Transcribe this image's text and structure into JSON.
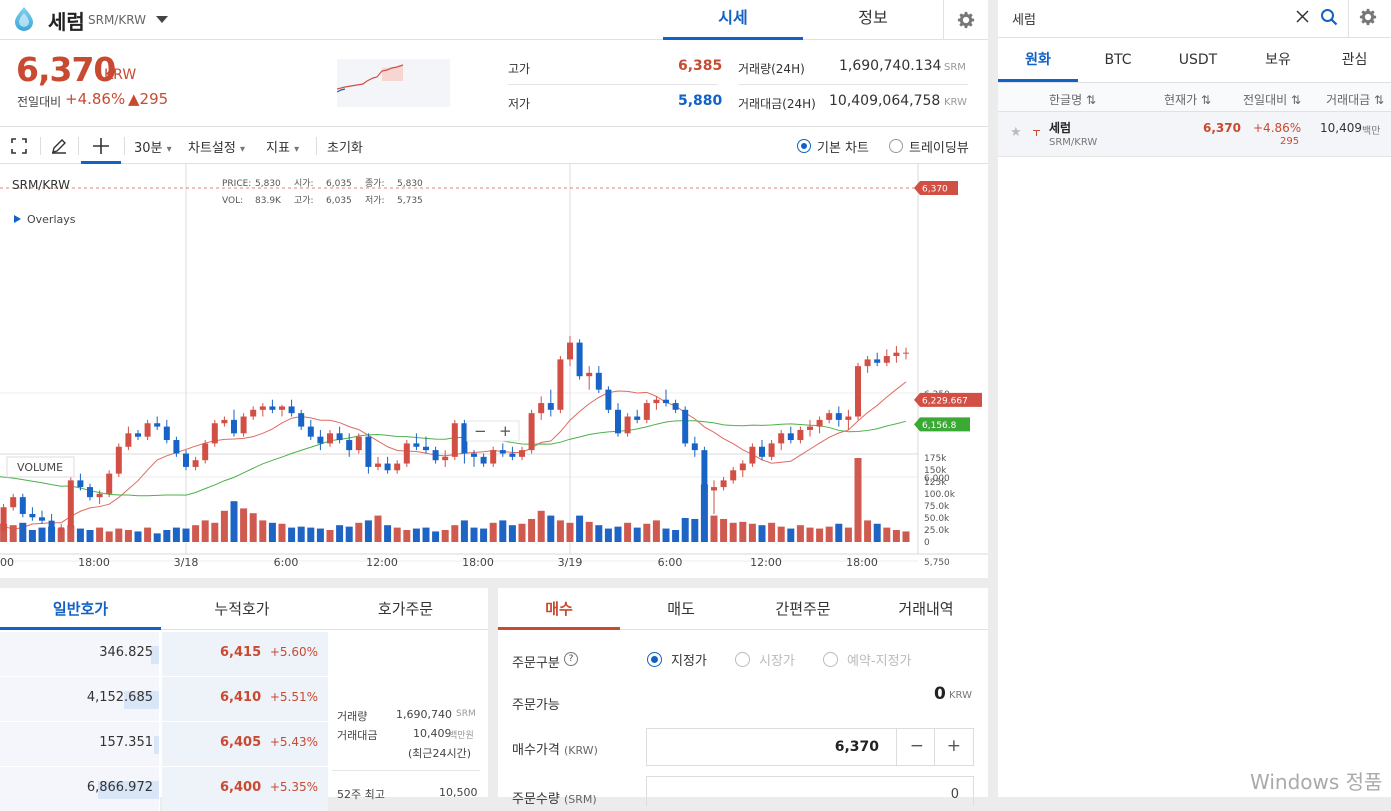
{
  "header": {
    "coin_name": "세럼",
    "coin_pair": "SRM/KRW",
    "tabs": [
      "시세",
      "정보"
    ]
  },
  "summary": {
    "price": "6,370",
    "unit": "KRW",
    "prev_label": "전일대비",
    "change_pct": "+4.86%",
    "change_abs": "▲295",
    "high_label": "고가",
    "high": "6,385",
    "low_label": "저가",
    "low": "5,880",
    "volume_label": "거래량(24H)",
    "volume": "1,690,740.134",
    "volume_unit": "SRM",
    "amount_label": "거래대금(24H)",
    "amount": "10,409,064,758",
    "amount_unit": "KRW"
  },
  "chart_toolbar": {
    "interval": "30분",
    "settings": "차트설정",
    "indicators": "지표",
    "reset": "초기화",
    "basic_chart": "기본 차트",
    "tradingview": "트레이딩뷰"
  },
  "chart_legend": {
    "pair": "SRM/KRW",
    "overlays": "Overlays",
    "price_label": "PRICE:",
    "price": "5,830",
    "open_label": "시가:",
    "open": "6,035",
    "close_label": "종가:",
    "close": "5,830",
    "vol_label": "VOL:",
    "vol": "83.9K",
    "high_label": "고가:",
    "high": "6,035",
    "low_label": "저가:",
    "low": "5,735",
    "volume_pane": "VOLUME",
    "minus": "−",
    "plus": "+"
  },
  "chart_data": {
    "type": "candlestick",
    "y_ticks": [
      "6,250",
      "6,000",
      "5,750"
    ],
    "y_tick_values": [
      6250,
      6000,
      5750
    ],
    "volume_ticks": [
      "175k",
      "150k",
      "125k",
      "100.0k",
      "75.0k",
      "50.0k",
      "25.0k",
      "0"
    ],
    "volume_tick_values": [
      175000,
      150000,
      125000,
      100000,
      75000,
      50000,
      25000,
      0
    ],
    "x_labels": [
      "00",
      "18:00",
      "3/18",
      "6:00",
      "12:00",
      "18:00",
      "3/19",
      "6:00",
      "12:00",
      "18:00"
    ],
    "price_tags": [
      {
        "label": "6,370",
        "value": 6370,
        "color": "#d24f45"
      },
      {
        "label": "6,229.667",
        "value": 6229.667,
        "color": "#d24f45"
      },
      {
        "label": "6,156.8",
        "value": 6156.8,
        "color": "#3aaa35"
      }
    ],
    "candles": [
      [
        6150,
        6170,
        6130,
        6140,
        25000
      ],
      [
        6140,
        6160,
        6120,
        6150,
        18000
      ],
      [
        6150,
        6155,
        6100,
        6120,
        22000
      ],
      [
        6120,
        6170,
        6110,
        6160,
        30000
      ],
      [
        6160,
        6175,
        6140,
        6145,
        20000
      ],
      [
        6145,
        6160,
        6110,
        6130,
        28000
      ],
      [
        6130,
        6190,
        6120,
        6175,
        35000
      ],
      [
        6175,
        6180,
        6150,
        6160,
        22000
      ],
      [
        6160,
        6165,
        6110,
        6120,
        40000
      ],
      [
        6120,
        6130,
        6070,
        6080,
        45000
      ],
      [
        6080,
        6100,
        6050,
        6070,
        55000
      ],
      [
        6070,
        6090,
        6020,
        6040,
        45000
      ],
      [
        6040,
        6050,
        5800,
        5830,
        85000
      ],
      [
        5830,
        5870,
        5750,
        5780,
        85000
      ],
      [
        5780,
        5860,
        5770,
        5850,
        40000
      ],
      [
        5850,
        5870,
        5810,
        5820,
        30000
      ],
      [
        5820,
        5860,
        5810,
        5850,
        35000
      ],
      [
        5850,
        5860,
        5790,
        5800,
        50000
      ],
      [
        5800,
        5830,
        5780,
        5820,
        40000
      ],
      [
        5820,
        5850,
        5690,
        5840,
        45000
      ],
      [
        5840,
        5920,
        5830,
        5910,
        38000
      ],
      [
        5910,
        5950,
        5900,
        5940,
        35000
      ],
      [
        5940,
        5950,
        5880,
        5890,
        40000
      ],
      [
        5890,
        5910,
        5870,
        5880,
        25000
      ],
      [
        5880,
        5900,
        5860,
        5870,
        30000
      ],
      [
        5870,
        5890,
        5830,
        5840,
        32000
      ],
      [
        5840,
        5860,
        5820,
        5850,
        28000
      ],
      [
        5850,
        6000,
        5840,
        5990,
        35000
      ],
      [
        5990,
        6010,
        5960,
        5970,
        28000
      ],
      [
        5970,
        5980,
        5930,
        5940,
        25000
      ],
      [
        5940,
        5960,
        5920,
        5950,
        30000
      ],
      [
        5950,
        6020,
        5940,
        6010,
        22000
      ],
      [
        6010,
        6100,
        6000,
        6090,
        28000
      ],
      [
        6090,
        6150,
        6080,
        6130,
        25000
      ],
      [
        6130,
        6140,
        6110,
        6120,
        22000
      ],
      [
        6120,
        6170,
        6110,
        6160,
        30000
      ],
      [
        6160,
        6180,
        6140,
        6150,
        18000
      ],
      [
        6150,
        6170,
        6100,
        6110,
        25000
      ],
      [
        6110,
        6120,
        6060,
        6070,
        30000
      ],
      [
        6070,
        6080,
        6020,
        6030,
        28000
      ],
      [
        6030,
        6060,
        6020,
        6050,
        35000
      ],
      [
        6050,
        6110,
        6040,
        6100,
        45000
      ],
      [
        6100,
        6170,
        6090,
        6160,
        40000
      ],
      [
        6160,
        6180,
        6150,
        6170,
        65000
      ],
      [
        6170,
        6200,
        6120,
        6130,
        85000
      ],
      [
        6130,
        6190,
        6120,
        6180,
        70000
      ],
      [
        6180,
        6210,
        6170,
        6200,
        60000
      ],
      [
        6200,
        6220,
        6180,
        6210,
        45000
      ],
      [
        6210,
        6230,
        6190,
        6200,
        40000
      ],
      [
        6200,
        6215,
        6180,
        6210,
        38000
      ],
      [
        6210,
        6230,
        6180,
        6190,
        30000
      ],
      [
        6190,
        6200,
        6140,
        6150,
        32000
      ],
      [
        6150,
        6170,
        6110,
        6120,
        30000
      ],
      [
        6120,
        6140,
        6080,
        6100,
        28000
      ],
      [
        6100,
        6140,
        6090,
        6130,
        25000
      ],
      [
        6130,
        6150,
        6100,
        6110,
        35000
      ],
      [
        6110,
        6130,
        6060,
        6080,
        32000
      ],
      [
        6080,
        6130,
        6070,
        6120,
        40000
      ],
      [
        6120,
        6130,
        6010,
        6030,
        45000
      ],
      [
        6030,
        6060,
        6020,
        6040,
        55000
      ],
      [
        6040,
        6060,
        6010,
        6020,
        35000
      ],
      [
        6020,
        6050,
        6010,
        6040,
        30000
      ],
      [
        6040,
        6110,
        6030,
        6100,
        25000
      ],
      [
        6100,
        6130,
        6080,
        6090,
        28000
      ],
      [
        6090,
        6120,
        6070,
        6080,
        30000
      ],
      [
        6080,
        6090,
        6040,
        6050,
        22000
      ],
      [
        6050,
        6080,
        6030,
        6060,
        25000
      ],
      [
        6060,
        6170,
        6050,
        6160,
        35000
      ],
      [
        6160,
        6170,
        6040,
        6070,
        45000
      ],
      [
        6070,
        6080,
        6030,
        6060,
        30000
      ],
      [
        6060,
        6070,
        6030,
        6040,
        28000
      ],
      [
        6040,
        6090,
        6030,
        6080,
        40000
      ],
      [
        6080,
        6100,
        6060,
        6070,
        45000
      ],
      [
        6070,
        6090,
        6050,
        6060,
        35000
      ],
      [
        6060,
        6090,
        6050,
        6080,
        38000
      ],
      [
        6080,
        6200,
        6070,
        6190,
        48000
      ],
      [
        6190,
        6240,
        6170,
        6220,
        65000
      ],
      [
        6220,
        6260,
        6180,
        6200,
        55000
      ],
      [
        6200,
        6360,
        6190,
        6350,
        45000
      ],
      [
        6350,
        6420,
        6330,
        6400,
        40000
      ],
      [
        6400,
        6410,
        6290,
        6300,
        55000
      ],
      [
        6300,
        6330,
        6260,
        6310,
        42000
      ],
      [
        6310,
        6330,
        6250,
        6260,
        35000
      ],
      [
        6260,
        6270,
        6190,
        6200,
        28000
      ],
      [
        6200,
        6220,
        6120,
        6130,
        32000
      ],
      [
        6130,
        6190,
        6120,
        6180,
        40000
      ],
      [
        6180,
        6200,
        6160,
        6170,
        30000
      ],
      [
        6170,
        6230,
        6160,
        6220,
        38000
      ],
      [
        6220,
        6240,
        6200,
        6230,
        45000
      ],
      [
        6230,
        6260,
        6210,
        6220,
        28000
      ],
      [
        6220,
        6230,
        6190,
        6200,
        25000
      ],
      [
        6200,
        6210,
        6090,
        6100,
        50000
      ],
      [
        6100,
        6120,
        6060,
        6080,
        48000
      ],
      [
        6080,
        6090,
        5930,
        5960,
        120000
      ],
      [
        5960,
        5990,
        5890,
        5970,
        55000
      ],
      [
        5970,
        6000,
        5960,
        5990,
        48000
      ],
      [
        5990,
        6030,
        5980,
        6020,
        40000
      ],
      [
        6020,
        6050,
        6000,
        6040,
        42000
      ],
      [
        6040,
        6100,
        6030,
        6090,
        38000
      ],
      [
        6090,
        6110,
        6050,
        6060,
        35000
      ],
      [
        6060,
        6110,
        6050,
        6100,
        40000
      ],
      [
        6100,
        6140,
        6080,
        6130,
        32000
      ],
      [
        6130,
        6150,
        6100,
        6110,
        28000
      ],
      [
        6110,
        6150,
        6100,
        6140,
        35000
      ],
      [
        6140,
        6170,
        6120,
        6150,
        30000
      ],
      [
        6150,
        6180,
        6130,
        6170,
        28000
      ],
      [
        6170,
        6200,
        6160,
        6190,
        32000
      ],
      [
        6190,
        6210,
        6150,
        6170,
        38000
      ],
      [
        6170,
        6200,
        6140,
        6180,
        30000
      ],
      [
        6180,
        6340,
        6170,
        6330,
        175000
      ],
      [
        6330,
        6360,
        6310,
        6350,
        45000
      ],
      [
        6350,
        6370,
        6330,
        6340,
        38000
      ],
      [
        6340,
        6380,
        6330,
        6360,
        30000
      ],
      [
        6360,
        6390,
        6340,
        6370,
        25000
      ],
      [
        6370,
        6385,
        6350,
        6370,
        22000
      ]
    ]
  },
  "orderbook": {
    "tabs": [
      "일반호가",
      "누적호가",
      "호가주문"
    ],
    "rows": [
      {
        "qty": "346.825",
        "price": "6,415",
        "pct": "+5.60%",
        "bar": 0.05
      },
      {
        "qty": "4,152.685",
        "price": "6,410",
        "pct": "+5.51%",
        "bar": 0.22
      },
      {
        "qty": "157.351",
        "price": "6,405",
        "pct": "+5.43%",
        "bar": 0.03
      },
      {
        "qty": "6,866.972",
        "price": "6,400",
        "pct": "+5.35%",
        "bar": 0.38
      }
    ],
    "info": {
      "volume_label": "거래량",
      "volume": "1,690,740",
      "volume_unit": "SRM",
      "amount_label": "거래대금",
      "amount": "10,409",
      "amount_unit": "백만원",
      "period": "(최근24시간)",
      "high52_label": "52주 최고",
      "high52": "10,500"
    }
  },
  "order_form": {
    "tabs": [
      "매수",
      "매도",
      "간편주문",
      "거래내역"
    ],
    "order_type_label": "주문구분",
    "help": "?",
    "types": [
      "지정가",
      "시장가",
      "예약-지정가"
    ],
    "available_label": "주문가능",
    "available": "0",
    "available_unit": "KRW",
    "price_label": "매수가격",
    "price_unit": "(KRW)",
    "price_value": "6,370",
    "minus": "−",
    "plus": "+",
    "qty_label": "주문수량",
    "qty_unit": "(SRM)",
    "qty_value": "0"
  },
  "market": {
    "search_value": "세럼",
    "tabs": [
      "원화",
      "BTC",
      "USDT",
      "보유",
      "관심"
    ],
    "headers": [
      "한글명",
      "현재가",
      "전일대비",
      "거래대금"
    ],
    "row": {
      "name": "세럼",
      "pair": "SRM/KRW",
      "price": "6,370",
      "pct": "+4.86%",
      "diff": "295",
      "amount": "10,409",
      "amount_unit": "백만"
    }
  },
  "watermark": "Windows 정품"
}
